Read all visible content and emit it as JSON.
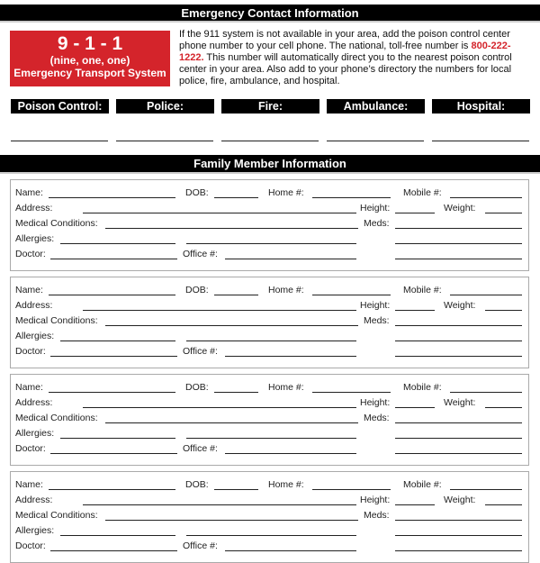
{
  "emergency": {
    "title": "Emergency Contact Information",
    "box": {
      "number": "9 - 1 - 1",
      "spelled": "(nine, one, one)",
      "system": "Emergency Transport System"
    },
    "info_before": "If the 911 system is not available in your area, add the poison control center phone number to your cell phone. The national, toll-free number is ",
    "phone": "800-222-1222.",
    "info_after": " This number will automatically direct you to the nearest poison control center in your area. Also add to your phone’s directory the numbers for local police, fire, ambulance, and hospital.",
    "contacts": [
      "Poison Control:",
      "Police:",
      "Fire:",
      "Ambulance:",
      "Hospital:"
    ],
    "accent": "#d4242b"
  },
  "family": {
    "title": "Family Member Information",
    "labels": {
      "name": "Name:",
      "dob": "DOB:",
      "home": "Home #:",
      "mobile": "Mobile #:",
      "address": "Address:",
      "height": "Height:",
      "weight": "Weight:",
      "medical": "Medical Conditions:",
      "meds": "Meds:",
      "allergies": "Allergies:",
      "doctor": "Doctor:",
      "office": "Office #:"
    },
    "card_count": 4
  }
}
